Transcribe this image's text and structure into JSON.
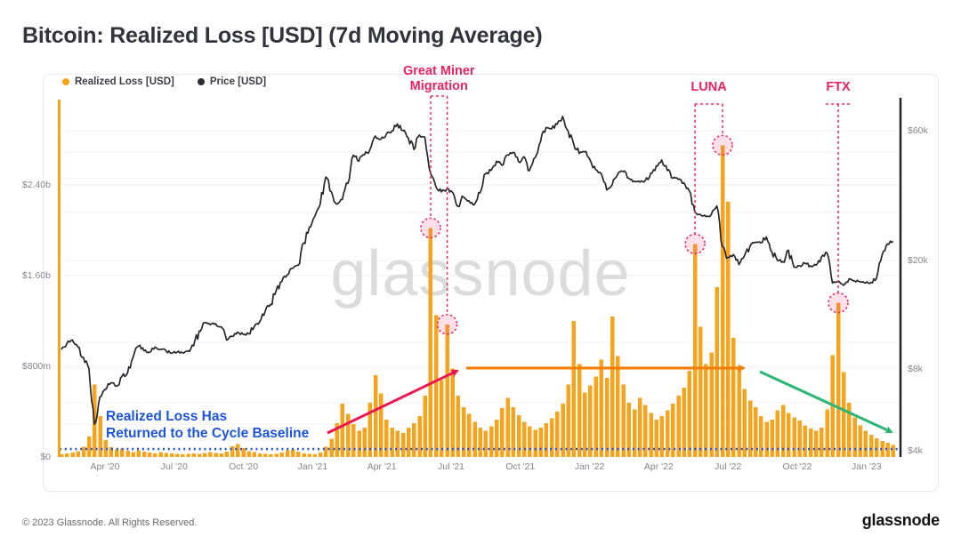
{
  "page": {
    "title": "Bitcoin: Realized Loss [USD] (7d Moving Average)",
    "watermark": "glassnode",
    "footer_copyright": "© 2023 Glassnode. All Rights Reserved.",
    "footer_logo": "glassnode"
  },
  "legend": {
    "items": [
      {
        "label": "Realized Loss [USD]",
        "color": "#F5A31B"
      },
      {
        "label": "Price [USD]",
        "color": "#2b2b33"
      }
    ]
  },
  "annotations": {
    "miner_migration": {
      "line1": "Great Miner",
      "line2": "Migration"
    },
    "luna": "LUNA",
    "ftx": "FTX",
    "baseline_note_line1": "Realized Loss Has",
    "baseline_note_line2": "Returned to the Cycle Baseline",
    "colors": {
      "event": "#ee2d64",
      "note": "#1d55dc",
      "baseline": "#2553ce",
      "arrow_red": "#ec1550",
      "arrow_orange": "#f27d00",
      "arrow_green": "#2bb673",
      "bars": "#f6a41e",
      "price": "#26262c",
      "watermark": "#dcdcdf",
      "left_spine": "#f5a31b",
      "right_spine": "#222228"
    }
  },
  "chart_data": {
    "type": "bar+line",
    "title": "Bitcoin: Realized Loss [USD] (7d Moving Average)",
    "interval": "weekly",
    "start": "Feb 2020",
    "end": "Feb 2023",
    "x_ticks": [
      "Apr '20",
      "Jul '20",
      "Oct '20",
      "Jan '21",
      "Apr '21",
      "Jul '21",
      "Oct '21",
      "Jan '22",
      "Apr '22",
      "Jul '22",
      "Oct '22",
      "Jan '23"
    ],
    "left_axis": {
      "label": "Realized Loss [USD]",
      "scale": "linear",
      "ticks": [
        {
          "label": "$0",
          "value_musd": 0
        },
        {
          "label": "$800m",
          "value_musd": 800
        },
        {
          "label": "$1.60b",
          "value_musd": 1600
        },
        {
          "label": "$2.40b",
          "value_musd": 2400
        }
      ]
    },
    "right_axis": {
      "label": "Price [USD]",
      "scale": "log",
      "ticks": [
        {
          "label": "$4k",
          "value_usd": 4000
        },
        {
          "label": "$8k",
          "value_usd": 8000
        },
        {
          "label": "$20k",
          "value_usd": 20000
        },
        {
          "label": "$60k",
          "value_usd": 60000
        }
      ],
      "minor_gridlines_usd": [
        5000,
        6000,
        8000,
        10000,
        20000,
        30000,
        40000,
        50000,
        60000
      ]
    },
    "baseline_musd": 70,
    "realized_loss_musd": [
      25,
      30,
      40,
      50,
      90,
      180,
      640,
      360,
      150,
      85,
      65,
      75,
      55,
      45,
      58,
      48,
      38,
      32,
      42,
      36,
      30,
      26,
      22,
      26,
      32,
      27,
      36,
      42,
      36,
      32,
      48,
      95,
      115,
      78,
      52,
      42,
      32,
      27,
      22,
      27,
      38,
      58,
      68,
      48,
      32,
      27,
      22,
      40,
      90,
      160,
      300,
      470,
      380,
      290,
      230,
      260,
      480,
      720,
      560,
      330,
      260,
      230,
      210,
      260,
      300,
      360,
      540,
      2020,
      1250,
      680,
      1170,
      780,
      540,
      440,
      380,
      310,
      260,
      230,
      270,
      330,
      430,
      520,
      440,
      370,
      310,
      270,
      240,
      260,
      300,
      340,
      400,
      470,
      640,
      1200,
      820,
      570,
      630,
      710,
      860,
      700,
      1240,
      890,
      640,
      480,
      420,
      520,
      460,
      390,
      330,
      360,
      410,
      470,
      540,
      610,
      760,
      1880,
      1150,
      820,
      920,
      1500,
      2750,
      2250,
      1050,
      780,
      600,
      500,
      440,
      360,
      310,
      330,
      410,
      460,
      390,
      350,
      320,
      280,
      250,
      230,
      260,
      420,
      900,
      1360,
      750,
      480,
      350,
      280,
      230,
      195,
      165,
      140,
      125,
      105
    ],
    "price_usd": [
      9400,
      9900,
      10200,
      9600,
      8800,
      8000,
      5000,
      6300,
      6700,
      7100,
      6900,
      7500,
      7700,
      8800,
      9700,
      9300,
      9200,
      9600,
      9400,
      9300,
      9100,
      9200,
      9150,
      9300,
      9700,
      11000,
      11800,
      11600,
      11700,
      11400,
      10200,
      10500,
      10900,
      10700,
      10750,
      11400,
      11900,
      13000,
      13800,
      15500,
      16700,
      17700,
      18700,
      19200,
      23200,
      26500,
      29000,
      32200,
      40500,
      35800,
      32200,
      33500,
      38300,
      48700,
      46300,
      48900,
      50900,
      57300,
      55800,
      58200,
      59800,
      63500,
      60000,
      56200,
      51100,
      57800,
      56700,
      42000,
      37300,
      35700,
      36700,
      35600,
      31600,
      34200,
      33100,
      32100,
      35400,
      41600,
      42800,
      46300,
      44700,
      48800,
      49900,
      46100,
      48100,
      42800,
      47700,
      54700,
      61600,
      60900,
      63300,
      67600,
      59700,
      53600,
      49400,
      50100,
      46700,
      43100,
      41700,
      36300,
      37900,
      41500,
      42400,
      40100,
      39100,
      38800,
      39300,
      41800,
      44500,
      46800,
      42800,
      40100,
      39700,
      38600,
      36000,
      30100,
      29500,
      29000,
      29500,
      31700,
      22500,
      20500,
      21000,
      19300,
      20800,
      22500,
      23300,
      23200,
      24400,
      21500,
      20000,
      19800,
      21800,
      18900,
      19100,
      19500,
      19100,
      19200,
      20600,
      21300,
      16500,
      16700,
      16200,
      17100,
      16800,
      16700,
      16500,
      16600,
      17200,
      20900,
      23000,
      23500
    ],
    "events": [
      {
        "name": "Great Miner Migration",
        "week_indices": [
          67,
          70
        ],
        "peaks_musd": [
          2020,
          1170
        ]
      },
      {
        "name": "LUNA",
        "week_indices": [
          115,
          120
        ],
        "peaks_musd": [
          1880,
          2750
        ]
      },
      {
        "name": "FTX",
        "week_indices": [
          141
        ],
        "peaks_musd": [
          1360
        ]
      }
    ]
  }
}
